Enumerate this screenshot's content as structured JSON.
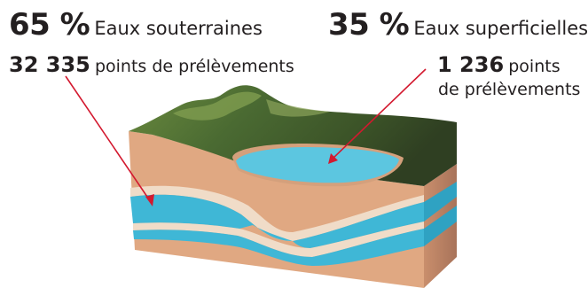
{
  "groundwater": {
    "percent": "65 %",
    "label": "Eaux souterraines",
    "count": "32 335",
    "points_label": "points de prélèvements"
  },
  "surface_water": {
    "percent": "35 %",
    "label": "Eaux superficielles",
    "count": "1 236",
    "points_label_line1": "points",
    "points_label_line2": "de prélèvements"
  },
  "colors": {
    "earth": "#e0a882",
    "earth_dark": "#c48d6b",
    "aquifer": "#3fb7d6",
    "sand": "#f0dcc8",
    "lake": "#5cc6e0",
    "terrain": "#4f6b34",
    "arrow": "#d3192f"
  }
}
